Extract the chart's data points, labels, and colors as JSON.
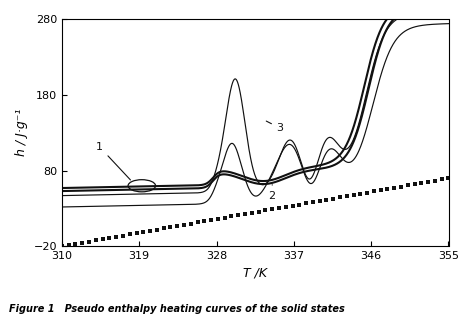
{
  "xlim": [
    310,
    355
  ],
  "ylim": [
    -20,
    280
  ],
  "xticks": [
    310,
    319,
    328,
    337,
    346,
    355
  ],
  "yticks": [
    -20,
    80,
    180,
    280
  ],
  "xlabel": "T /K",
  "ylabel": "h / J·g⁻¹",
  "background_color": "#ffffff",
  "line_color": "#111111",
  "caption": "Figure 1   Pseudo enthalpy heating curves of the solid states"
}
